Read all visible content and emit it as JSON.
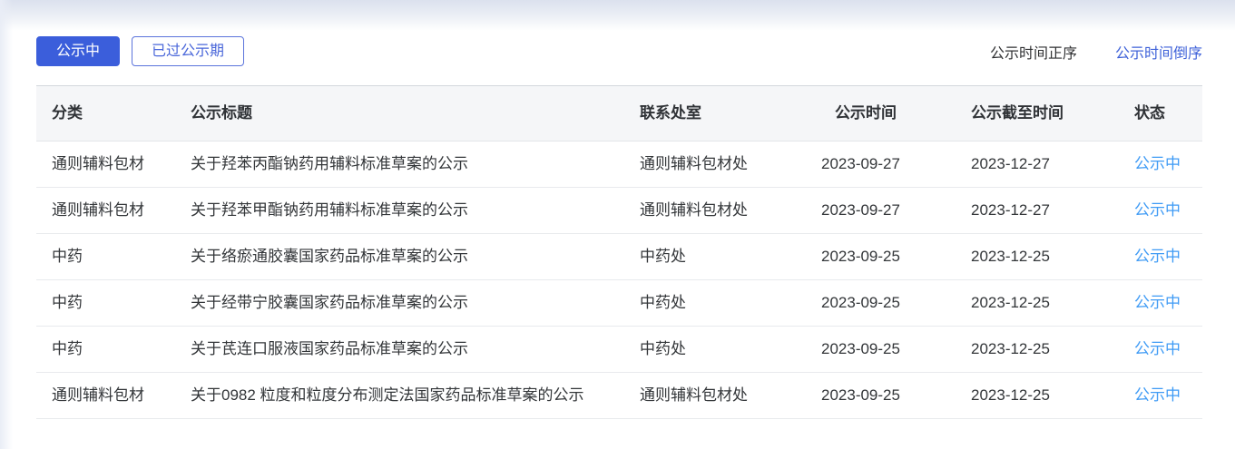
{
  "filters": {
    "active_label": "公示中",
    "expired_label": "已过公示期"
  },
  "sort": {
    "asc_label": "公示时间正序",
    "desc_label": "公示时间倒序"
  },
  "table": {
    "columns": [
      "分类",
      "公示标题",
      "联系处室",
      "公示时间",
      "公示截至时间",
      "状态"
    ],
    "rows": [
      {
        "category": "通则辅料包材",
        "title": "关于羟苯丙酯钠药用辅料标准草案的公示",
        "department": "通则辅料包材处",
        "publish_date": "2023-09-27",
        "deadline": "2023-12-27",
        "status": "公示中"
      },
      {
        "category": "通则辅料包材",
        "title": "关于羟苯甲酯钠药用辅料标准草案的公示",
        "department": "通则辅料包材处",
        "publish_date": "2023-09-27",
        "deadline": "2023-12-27",
        "status": "公示中"
      },
      {
        "category": "中药",
        "title": "关于络瘀通胶囊国家药品标准草案的公示",
        "department": "中药处",
        "publish_date": "2023-09-25",
        "deadline": "2023-12-25",
        "status": "公示中"
      },
      {
        "category": "中药",
        "title": "关于经带宁胶囊国家药品标准草案的公示",
        "department": "中药处",
        "publish_date": "2023-09-25",
        "deadline": "2023-12-25",
        "status": "公示中"
      },
      {
        "category": "中药",
        "title": "关于芪连口服液国家药品标准草案的公示",
        "department": "中药处",
        "publish_date": "2023-09-25",
        "deadline": "2023-12-25",
        "status": "公示中"
      },
      {
        "category": "通则辅料包材",
        "title": "关于0982 粒度和粒度分布测定法国家药品标准草案的公示",
        "department": "通则辅料包材处",
        "publish_date": "2023-09-25",
        "deadline": "2023-12-25",
        "status": "公示中"
      }
    ]
  },
  "colors": {
    "primary_blue": "#3b5edb",
    "status_blue": "#3f9bf5",
    "sort_active_blue": "#3f62d9"
  }
}
